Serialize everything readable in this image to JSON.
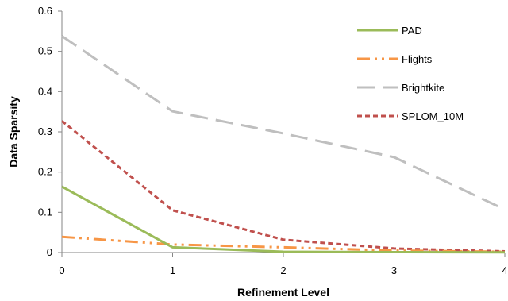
{
  "chart_data": {
    "type": "line",
    "title": "",
    "xlabel": "Refinement Level",
    "ylabel": "Data Sparsity",
    "x": [
      0,
      1,
      2,
      3,
      4
    ],
    "x_ticks": [
      "0",
      "1",
      "2",
      "3",
      "4"
    ],
    "y_ticks": [
      "0",
      "0.1",
      "0.2",
      "0.3",
      "0.4",
      "0.5",
      "0.6"
    ],
    "ylim": [
      0,
      0.6
    ],
    "xlim": [
      0,
      4
    ],
    "grid": false,
    "legend_position": "top-right",
    "series": [
      {
        "name": "PAD",
        "values": [
          0.164,
          0.013,
          0.002,
          0.001,
          0.0005
        ],
        "color": "#9BBB59",
        "dash": "solid"
      },
      {
        "name": "Flights",
        "values": [
          0.039,
          0.02,
          0.013,
          0.005,
          0.002
        ],
        "color": "#F79646",
        "dash": "dash-dot-dot"
      },
      {
        "name": "Brightkite",
        "values": [
          0.538,
          0.351,
          0.296,
          0.237,
          0.107
        ],
        "color": "#BFBFBF",
        "dash": "long-dash"
      },
      {
        "name": "SPLOM_10M",
        "values": [
          0.327,
          0.105,
          0.032,
          0.01,
          0.003
        ],
        "color": "#C0504D",
        "dash": "dash"
      }
    ]
  }
}
